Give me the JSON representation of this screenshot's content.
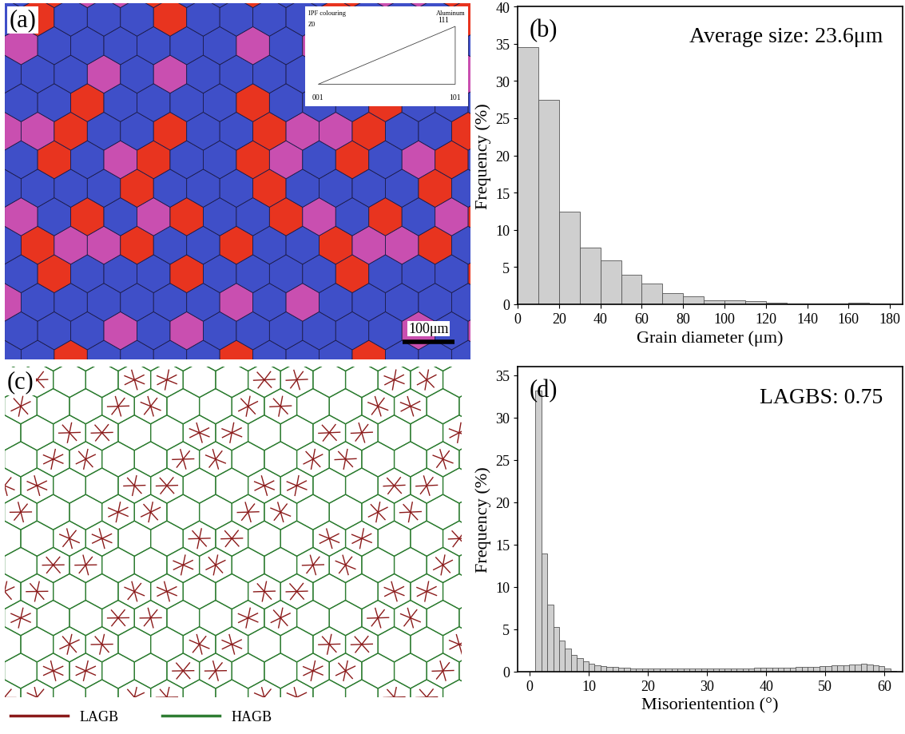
{
  "chart_data": [
    {
      "type": "map",
      "panel_label": "(a)",
      "scale_bar": "100μm",
      "tick_labels": false,
      "key": {
        "title": "IPF colouring",
        "direction": "Z0",
        "material": "Aluminum",
        "corners": [
          "001",
          "101",
          "111"
        ]
      }
    },
    {
      "type": "histogram",
      "panel_label": "(b)",
      "annotation": "Average size: 23.6μm",
      "x_label": "Grain diameter (μm)",
      "y_label": "Frequency (%)",
      "color": "#cfcfcf",
      "bins": [
        0,
        10,
        20,
        30,
        40,
        50,
        60,
        70,
        80,
        90,
        100,
        110,
        120,
        130,
        140,
        150,
        160,
        170,
        180
      ],
      "values": [
        34.6,
        27.5,
        12.4,
        7.6,
        5.9,
        3.9,
        2.8,
        1.5,
        1.1,
        0.5,
        0.5,
        0.4,
        0.2,
        0.1,
        0.05,
        0.1,
        0.15,
        0.05
      ],
      "xlim": [
        0,
        186
      ],
      "xticks": [
        0,
        20,
        40,
        60,
        80,
        100,
        120,
        140,
        160,
        180
      ],
      "ylim": [
        0,
        40
      ],
      "yticks": [
        0,
        5,
        10,
        15,
        20,
        25,
        30,
        35,
        40
      ]
    },
    {
      "type": "map",
      "panel_label": "(c)",
      "tick_labels": false,
      "legend": "lower left",
      "series": [
        {
          "name": "LAGB",
          "color": "#8b1a1a"
        },
        {
          "name": "HAGB",
          "color": "#2e7d32"
        }
      ]
    },
    {
      "type": "histogram",
      "panel_label": "(d)",
      "annotation": "LAGBS: 0.75",
      "x_label": "Misorientention (°)",
      "y_label": "Frequency (%)",
      "color": "#cfcfcf",
      "bins": [
        1,
        2,
        3,
        4,
        5,
        6,
        7,
        8,
        9,
        10,
        11,
        12,
        13,
        14,
        15,
        16,
        17,
        18,
        19,
        20,
        21,
        22,
        23,
        24,
        25,
        26,
        27,
        28,
        29,
        30,
        31,
        32,
        33,
        34,
        35,
        36,
        37,
        38,
        39,
        40,
        41,
        42,
        43,
        44,
        45,
        46,
        47,
        48,
        49,
        50,
        51,
        52,
        53,
        54,
        55,
        56,
        57,
        58,
        59,
        60,
        61,
        62
      ],
      "values": [
        33.2,
        13.9,
        7.9,
        5.3,
        3.7,
        2.7,
        2.0,
        1.6,
        1.2,
        0.9,
        0.75,
        0.65,
        0.55,
        0.5,
        0.45,
        0.42,
        0.4,
        0.4,
        0.38,
        0.37,
        0.35,
        0.35,
        0.35,
        0.35,
        0.35,
        0.35,
        0.35,
        0.35,
        0.35,
        0.36,
        0.37,
        0.37,
        0.38,
        0.38,
        0.39,
        0.4,
        0.4,
        0.41,
        0.42,
        0.43,
        0.44,
        0.45,
        0.46,
        0.48,
        0.5,
        0.52,
        0.55,
        0.58,
        0.62,
        0.68,
        0.72,
        0.75,
        0.78,
        0.8,
        0.85,
        0.88,
        0.85,
        0.78,
        0.62,
        0.38,
        0.12
      ],
      "xlim": [
        -2,
        63
      ],
      "xticks": [
        0,
        10,
        20,
        30,
        40,
        50,
        60
      ],
      "ylim": [
        0,
        36
      ],
      "yticks": [
        0,
        5,
        10,
        15,
        20,
        25,
        30,
        35
      ]
    }
  ]
}
